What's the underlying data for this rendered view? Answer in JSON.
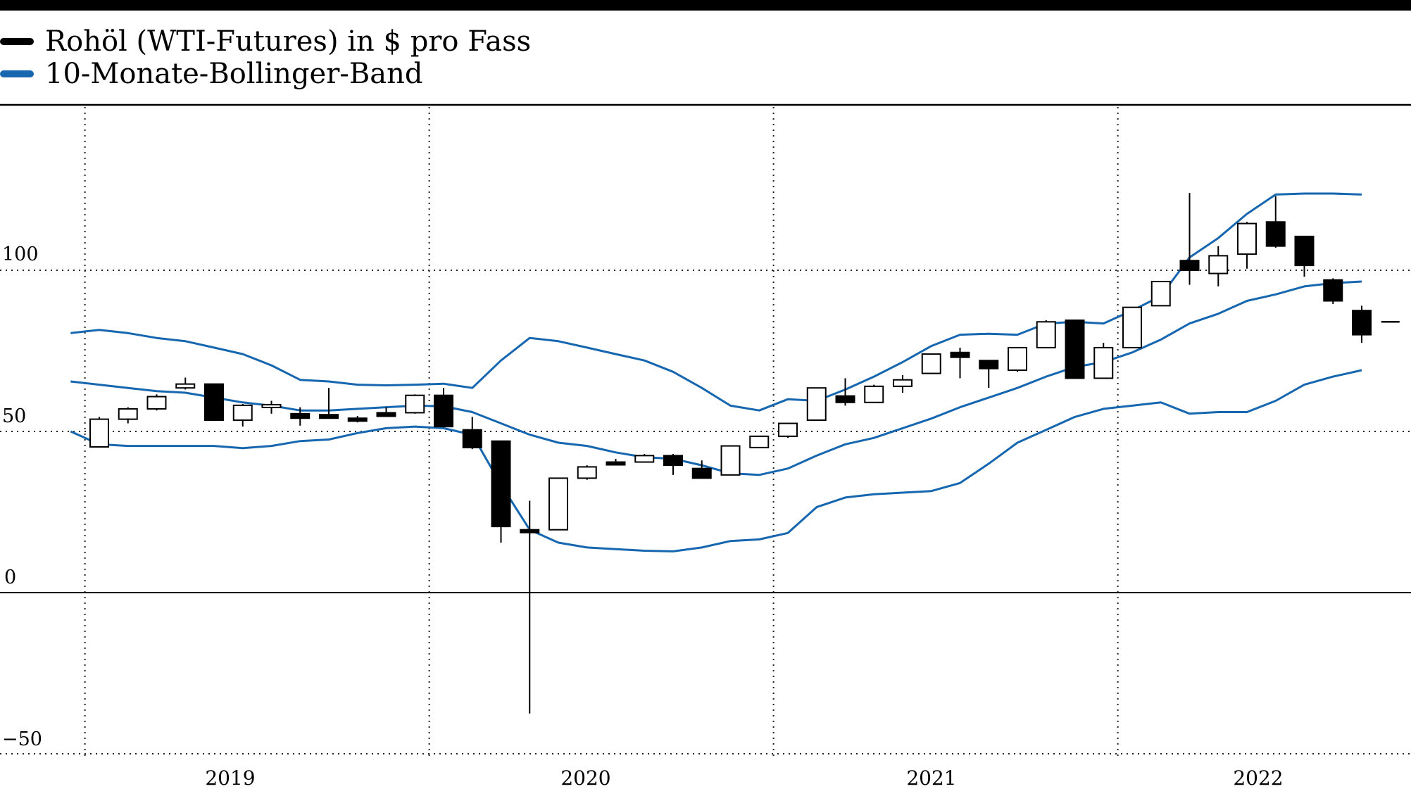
{
  "colors": {
    "price": "#000000",
    "band": "#1767b0",
    "grid": "#222222"
  },
  "legend": {
    "price_label": "Rohöl (WTI-Futures) in $ pro Fass",
    "band_label": "10-Monate-Bollinger-Band"
  },
  "axes": {
    "y_ticks": [
      "100",
      "50",
      "0",
      "−50"
    ],
    "x_ticks": [
      "2019",
      "2020",
      "2021",
      "2022"
    ]
  },
  "chart_data": {
    "type": "candlestick",
    "ylim": [
      -50,
      140
    ],
    "y_tick_values": [
      100,
      50,
      0,
      -50
    ],
    "y_tick_labels": [
      "100",
      "50",
      "0",
      "−50"
    ],
    "x_tick_labels": [
      "2019",
      "2020",
      "2021",
      "2022"
    ],
    "year_gridlines": [
      "2018-09",
      "2019-09",
      "2020-09",
      "2021-09"
    ],
    "grid": true,
    "legend_position": "top-left",
    "series": [
      {
        "name": "Rohöl (WTI-Futures) in $ pro Fass",
        "kind": "ohlc-monthly",
        "bars": [
          {
            "month": "2018-10",
            "o": 45.2,
            "h": 54.5,
            "l": 45,
            "c": 53.8
          },
          {
            "month": "2018-11",
            "o": 53.8,
            "h": 57.5,
            "l": 52.5,
            "c": 57
          },
          {
            "month": "2018-12",
            "o": 57,
            "h": 61.5,
            "l": 56.5,
            "c": 60.8
          },
          {
            "month": "2019-01",
            "o": 63.5,
            "h": 66.7,
            "l": 63,
            "c": 64.7
          },
          {
            "month": "2019-02",
            "o": 64.7,
            "h": 64.7,
            "l": 53.3,
            "c": 53.5
          },
          {
            "month": "2019-03",
            "o": 53.5,
            "h": 58.5,
            "l": 51.5,
            "c": 58.1
          },
          {
            "month": "2019-04",
            "o": 58.1,
            "h": 59.5,
            "l": 55.5,
            "c": 58.3
          },
          {
            "month": "2019-05",
            "o": 55.5,
            "h": 57.5,
            "l": 51.8,
            "c": 54.1
          },
          {
            "month": "2019-06",
            "o": 55.2,
            "h": 63.5,
            "l": 54.1,
            "c": 54.1
          },
          {
            "month": "2019-07",
            "o": 54.1,
            "h": 54.8,
            "l": 52.8,
            "c": 53.2
          },
          {
            "month": "2019-08",
            "o": 55.8,
            "h": 57.5,
            "l": 54.6,
            "c": 54.7
          },
          {
            "month": "2019-09",
            "o": 55.8,
            "h": 61.5,
            "l": 55.5,
            "c": 61.2
          },
          {
            "month": "2019-10",
            "o": 61.2,
            "h": 63.5,
            "l": 51.5,
            "c": 51.5
          },
          {
            "month": "2019-11",
            "o": 50.5,
            "h": 54.5,
            "l": 44.5,
            "c": 45
          },
          {
            "month": "2019-12",
            "o": 47,
            "h": 47,
            "l": 15.5,
            "c": 20.5
          },
          {
            "month": "2020-01",
            "o": 19.5,
            "h": 28.5,
            "l": -37.5,
            "c": 18.8
          },
          {
            "month": "2020-02",
            "o": 19.5,
            "h": 35.5,
            "l": 19.5,
            "c": 35.5
          },
          {
            "month": "2020-03",
            "o": 35.5,
            "h": 39.5,
            "l": 35,
            "c": 39
          },
          {
            "month": "2020-04",
            "o": 40.5,
            "h": 41.5,
            "l": 39.8,
            "c": 40
          },
          {
            "month": "2020-05",
            "o": 40.5,
            "h": 43,
            "l": 40.5,
            "c": 42.5
          },
          {
            "month": "2020-06",
            "o": 42.5,
            "h": 43,
            "l": 36.5,
            "c": 39.5
          },
          {
            "month": "2020-07",
            "o": 38.5,
            "h": 41,
            "l": 35.5,
            "c": 35.5
          },
          {
            "month": "2020-08",
            "o": 36.5,
            "h": 45.5,
            "l": 36.5,
            "c": 45.5
          },
          {
            "month": "2020-09",
            "o": 45,
            "h": 48.5,
            "l": 45,
            "c": 48.5
          },
          {
            "month": "2020-10",
            "o": 48.5,
            "h": 52.5,
            "l": 48,
            "c": 52.5
          },
          {
            "month": "2020-11",
            "o": 53.5,
            "h": 63.5,
            "l": 53.5,
            "c": 63.5
          },
          {
            "month": "2020-12",
            "o": 61,
            "h": 66.5,
            "l": 58,
            "c": 59
          },
          {
            "month": "2021-01",
            "o": 59,
            "h": 64.5,
            "l": 59,
            "c": 64
          },
          {
            "month": "2021-02",
            "o": 64,
            "h": 67.5,
            "l": 62,
            "c": 66
          },
          {
            "month": "2021-03",
            "o": 68,
            "h": 74,
            "l": 68,
            "c": 74
          },
          {
            "month": "2021-04",
            "o": 74.5,
            "h": 76,
            "l": 66.5,
            "c": 73
          },
          {
            "month": "2021-05",
            "o": 72,
            "h": 72,
            "l": 63.5,
            "c": 69.5
          },
          {
            "month": "2021-06",
            "o": 69,
            "h": 76,
            "l": 68.5,
            "c": 76
          },
          {
            "month": "2021-07",
            "o": 76,
            "h": 84.5,
            "l": 76,
            "c": 84
          },
          {
            "month": "2021-08",
            "o": 84.5,
            "h": 84.5,
            "l": 66.5,
            "c": 66.5
          },
          {
            "month": "2021-09",
            "o": 66.5,
            "h": 77.5,
            "l": 66.5,
            "c": 76
          },
          {
            "month": "2021-10",
            "o": 76,
            "h": 88.5,
            "l": 76,
            "c": 88.5
          },
          {
            "month": "2021-11",
            "o": 89,
            "h": 96.5,
            "l": 89,
            "c": 96.5
          },
          {
            "month": "2021-12",
            "o": 103,
            "h": 124,
            "l": 95.5,
            "c": 100
          },
          {
            "month": "2022-01",
            "o": 99,
            "h": 107.5,
            "l": 95,
            "c": 104.5
          },
          {
            "month": "2022-02",
            "o": 105,
            "h": 115,
            "l": 100.5,
            "c": 114.5
          },
          {
            "month": "2022-03",
            "o": 115,
            "h": 123,
            "l": 107,
            "c": 107.5
          },
          {
            "month": "2022-04",
            "o": 110.5,
            "h": 110.5,
            "l": 98,
            "c": 101.5
          },
          {
            "month": "2022-05",
            "o": 97,
            "h": 97.5,
            "l": 89.5,
            "c": 90.5
          },
          {
            "month": "2022-06",
            "o": 87.5,
            "h": 89,
            "l": 77.5,
            "c": 80
          },
          {
            "month": "2022-07",
            "o": 84,
            "h": 84,
            "l": 84,
            "c": 84
          }
        ]
      },
      {
        "name": "10-Monate-Bollinger-Band",
        "kind": "band",
        "upper": [
          {
            "month": "2018-09",
            "v": 80.5
          },
          {
            "month": "2018-10",
            "v": 81.5
          },
          {
            "month": "2018-11",
            "v": 80.5
          },
          {
            "month": "2018-12",
            "v": 79
          },
          {
            "month": "2019-01",
            "v": 78
          },
          {
            "month": "2019-02",
            "v": 76
          },
          {
            "month": "2019-03",
            "v": 74
          },
          {
            "month": "2019-04",
            "v": 70.5
          },
          {
            "month": "2019-05",
            "v": 66
          },
          {
            "month": "2019-06",
            "v": 65.5
          },
          {
            "month": "2019-07",
            "v": 64.5
          },
          {
            "month": "2019-08",
            "v": 64.3
          },
          {
            "month": "2019-09",
            "v": 64.5
          },
          {
            "month": "2019-10",
            "v": 64.8
          },
          {
            "month": "2019-11",
            "v": 63.5
          },
          {
            "month": "2019-12",
            "v": 72
          },
          {
            "month": "2020-01",
            "v": 79
          },
          {
            "month": "2020-02",
            "v": 78
          },
          {
            "month": "2020-03",
            "v": 76
          },
          {
            "month": "2020-04",
            "v": 74
          },
          {
            "month": "2020-05",
            "v": 72
          },
          {
            "month": "2020-06",
            "v": 68.5
          },
          {
            "month": "2020-07",
            "v": 63.5
          },
          {
            "month": "2020-08",
            "v": 58
          },
          {
            "month": "2020-09",
            "v": 56.5
          },
          {
            "month": "2020-10",
            "v": 60
          },
          {
            "month": "2020-11",
            "v": 59.5
          },
          {
            "month": "2020-12",
            "v": 63
          },
          {
            "month": "2021-01",
            "v": 67
          },
          {
            "month": "2021-02",
            "v": 71.5
          },
          {
            "month": "2021-03",
            "v": 76.5
          },
          {
            "month": "2021-04",
            "v": 80
          },
          {
            "month": "2021-05",
            "v": 80.3
          },
          {
            "month": "2021-06",
            "v": 80
          },
          {
            "month": "2021-07",
            "v": 83.5
          },
          {
            "month": "2021-08",
            "v": 84
          },
          {
            "month": "2021-09",
            "v": 83.5
          },
          {
            "month": "2021-10",
            "v": 87.5
          },
          {
            "month": "2021-11",
            "v": 92
          },
          {
            "month": "2021-12",
            "v": 104
          },
          {
            "month": "2022-01",
            "v": 110
          },
          {
            "month": "2022-02",
            "v": 117.5
          },
          {
            "month": "2022-03",
            "v": 123.5
          },
          {
            "month": "2022-04",
            "v": 123.8
          },
          {
            "month": "2022-05",
            "v": 123.8
          },
          {
            "month": "2022-06",
            "v": 123.5
          }
        ],
        "middle": [
          {
            "month": "2018-09",
            "v": 65.5
          },
          {
            "month": "2018-10",
            "v": 64.5
          },
          {
            "month": "2018-11",
            "v": 63.5
          },
          {
            "month": "2018-12",
            "v": 62.5
          },
          {
            "month": "2019-01",
            "v": 62
          },
          {
            "month": "2019-02",
            "v": 60.5
          },
          {
            "month": "2019-03",
            "v": 59
          },
          {
            "month": "2019-04",
            "v": 58
          },
          {
            "month": "2019-05",
            "v": 56.5
          },
          {
            "month": "2019-06",
            "v": 56.5
          },
          {
            "month": "2019-07",
            "v": 57
          },
          {
            "month": "2019-08",
            "v": 57.5
          },
          {
            "month": "2019-09",
            "v": 58
          },
          {
            "month": "2019-10",
            "v": 57.8
          },
          {
            "month": "2019-11",
            "v": 56
          },
          {
            "month": "2019-12",
            "v": 52.5
          },
          {
            "month": "2020-01",
            "v": 49
          },
          {
            "month": "2020-02",
            "v": 46.5
          },
          {
            "month": "2020-03",
            "v": 45.5
          },
          {
            "month": "2020-04",
            "v": 43.5
          },
          {
            "month": "2020-05",
            "v": 42
          },
          {
            "month": "2020-06",
            "v": 41.5
          },
          {
            "month": "2020-07",
            "v": 39.5
          },
          {
            "month": "2020-08",
            "v": 37
          },
          {
            "month": "2020-09",
            "v": 36.5
          },
          {
            "month": "2020-10",
            "v": 38.5
          },
          {
            "month": "2020-11",
            "v": 42.5
          },
          {
            "month": "2020-12",
            "v": 46
          },
          {
            "month": "2021-01",
            "v": 48
          },
          {
            "month": "2021-02",
            "v": 51
          },
          {
            "month": "2021-03",
            "v": 54
          },
          {
            "month": "2021-04",
            "v": 57.5
          },
          {
            "month": "2021-05",
            "v": 60.5
          },
          {
            "month": "2021-06",
            "v": 63.5
          },
          {
            "month": "2021-07",
            "v": 67
          },
          {
            "month": "2021-08",
            "v": 70
          },
          {
            "month": "2021-09",
            "v": 71.5
          },
          {
            "month": "2021-10",
            "v": 74.5
          },
          {
            "month": "2021-11",
            "v": 78.5
          },
          {
            "month": "2021-12",
            "v": 83.5
          },
          {
            "month": "2022-01",
            "v": 86.5
          },
          {
            "month": "2022-02",
            "v": 90.5
          },
          {
            "month": "2022-03",
            "v": 92.5
          },
          {
            "month": "2022-04",
            "v": 95
          },
          {
            "month": "2022-05",
            "v": 96
          },
          {
            "month": "2022-06",
            "v": 96.5
          }
        ],
        "lower": [
          {
            "month": "2018-09",
            "v": 50
          },
          {
            "month": "2018-10",
            "v": 46
          },
          {
            "month": "2018-11",
            "v": 45.5
          },
          {
            "month": "2018-12",
            "v": 45.5
          },
          {
            "month": "2019-01",
            "v": 45.5
          },
          {
            "month": "2019-02",
            "v": 45.5
          },
          {
            "month": "2019-03",
            "v": 44.8
          },
          {
            "month": "2019-04",
            "v": 45.5
          },
          {
            "month": "2019-05",
            "v": 47
          },
          {
            "month": "2019-06",
            "v": 47.5
          },
          {
            "month": "2019-07",
            "v": 49.5
          },
          {
            "month": "2019-08",
            "v": 51
          },
          {
            "month": "2019-09",
            "v": 51.5
          },
          {
            "month": "2019-10",
            "v": 51
          },
          {
            "month": "2019-11",
            "v": 49
          },
          {
            "month": "2019-12",
            "v": 33.5
          },
          {
            "month": "2020-01",
            "v": 19.5
          },
          {
            "month": "2020-02",
            "v": 15.5
          },
          {
            "month": "2020-03",
            "v": 14
          },
          {
            "month": "2020-04",
            "v": 13.5
          },
          {
            "month": "2020-05",
            "v": 13
          },
          {
            "month": "2020-06",
            "v": 12.8
          },
          {
            "month": "2020-07",
            "v": 14
          },
          {
            "month": "2020-08",
            "v": 16
          },
          {
            "month": "2020-09",
            "v": 16.5
          },
          {
            "month": "2020-10",
            "v": 18.5
          },
          {
            "month": "2020-11",
            "v": 26.5
          },
          {
            "month": "2020-12",
            "v": 29.5
          },
          {
            "month": "2021-01",
            "v": 30.5
          },
          {
            "month": "2021-02",
            "v": 31
          },
          {
            "month": "2021-03",
            "v": 31.5
          },
          {
            "month": "2021-04",
            "v": 34
          },
          {
            "month": "2021-05",
            "v": 40
          },
          {
            "month": "2021-06",
            "v": 46.5
          },
          {
            "month": "2021-07",
            "v": 50.5
          },
          {
            "month": "2021-08",
            "v": 54.5
          },
          {
            "month": "2021-09",
            "v": 57
          },
          {
            "month": "2021-10",
            "v": 58
          },
          {
            "month": "2021-11",
            "v": 59
          },
          {
            "month": "2021-12",
            "v": 55.5
          },
          {
            "month": "2022-01",
            "v": 56
          },
          {
            "month": "2022-02",
            "v": 56
          },
          {
            "month": "2022-03",
            "v": 59.5
          },
          {
            "month": "2022-04",
            "v": 64.5
          },
          {
            "month": "2022-05",
            "v": 67
          },
          {
            "month": "2022-06",
            "v": 69
          }
        ]
      }
    ]
  }
}
